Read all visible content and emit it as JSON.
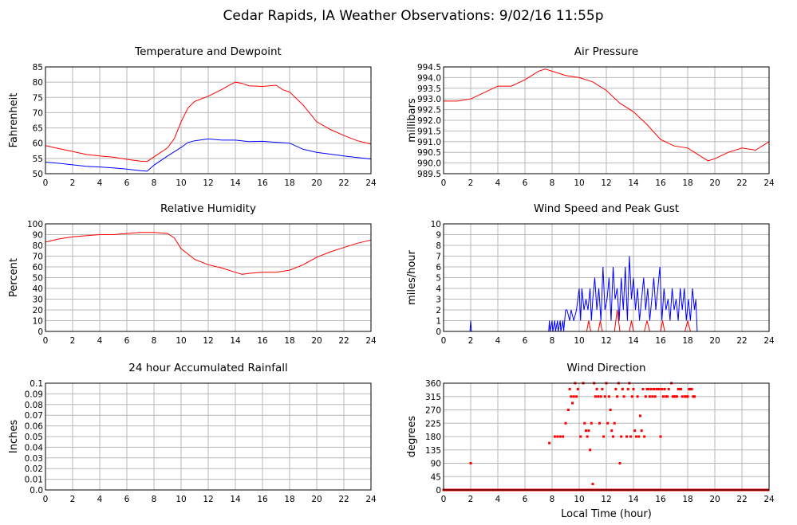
{
  "page": {
    "title": "Cedar Rapids, IA Weather Observations: 9/02/16 11:55p",
    "xaxis_label": "Local Time (hour)"
  },
  "colors": {
    "red": "#ff0000",
    "blue": "#0000ff"
  },
  "chart_data": [
    {
      "id": "temp",
      "type": "line",
      "title": "Temperature and Dewpoint",
      "ylabel": "Fahrenheit",
      "xlim": [
        0,
        24
      ],
      "ylim": [
        50,
        85
      ],
      "x_ticks": [
        0,
        2,
        4,
        6,
        8,
        10,
        12,
        14,
        16,
        18,
        20,
        22,
        24
      ],
      "y_ticks": [
        50,
        55,
        60,
        65,
        70,
        75,
        80,
        85
      ],
      "y_tick_labels": [
        "50",
        "55",
        "60",
        "65",
        "70",
        "75",
        "80",
        "85"
      ],
      "grid": true,
      "series": [
        {
          "color": "red",
          "x": [
            0,
            1,
            2,
            3,
            4,
            5,
            6,
            7,
            7.5,
            8,
            9,
            9.5,
            10,
            10.5,
            11,
            12,
            13,
            13.5,
            14,
            14.5,
            15,
            16,
            17,
            17.5,
            18,
            19,
            20,
            21,
            22,
            23,
            24
          ],
          "y": [
            59.2,
            58.2,
            57.3,
            56.3,
            55.8,
            55.4,
            54.7,
            54.1,
            54.0,
            55.5,
            58.5,
            61.5,
            67,
            71.5,
            73.7,
            75.4,
            77.6,
            78.9,
            80,
            79.6,
            78.8,
            78.6,
            79,
            77.5,
            76.8,
            72.5,
            67,
            64.5,
            62.5,
            60.8,
            59.7
          ]
        },
        {
          "color": "blue",
          "x": [
            0,
            1,
            2,
            3,
            4,
            5,
            6,
            7,
            7.5,
            8,
            9,
            10,
            10.5,
            11,
            12,
            13,
            14,
            15,
            16,
            17,
            18,
            19,
            20,
            21,
            22,
            23,
            24
          ],
          "y": [
            53.8,
            53.4,
            52.9,
            52.4,
            52.2,
            51.9,
            51.5,
            51.0,
            50.8,
            52.8,
            55.8,
            58.6,
            60.2,
            60.8,
            61.4,
            61.0,
            61.0,
            60.5,
            60.6,
            60.3,
            60.0,
            58.0,
            57.0,
            56.4,
            55.8,
            55.3,
            54.8
          ]
        }
      ]
    },
    {
      "id": "pressure",
      "type": "line",
      "title": "Air Pressure",
      "ylabel": "millibars",
      "xlim": [
        0,
        24
      ],
      "ylim": [
        989.5,
        994.5
      ],
      "x_ticks": [
        0,
        2,
        4,
        6,
        8,
        10,
        12,
        14,
        16,
        18,
        20,
        22,
        24
      ],
      "y_ticks": [
        989.5,
        990,
        990.5,
        991,
        991.5,
        992,
        992.5,
        993,
        993.5,
        994,
        994.5
      ],
      "y_tick_labels": [
        "989.5",
        "990.0",
        "990.5",
        "991.0",
        "991.5",
        "992.0",
        "992.5",
        "993.0",
        "993.5",
        "994.0",
        "994.5"
      ],
      "grid": true,
      "series": [
        {
          "color": "red",
          "x": [
            0,
            1,
            2,
            3,
            4,
            5,
            6,
            7,
            7.5,
            8,
            9,
            10,
            11,
            12,
            13,
            14,
            15,
            16,
            17,
            18,
            19,
            19.5,
            20,
            21,
            22,
            23,
            24
          ],
          "y": [
            992.9,
            992.9,
            993.0,
            993.3,
            993.6,
            993.6,
            993.9,
            994.3,
            994.4,
            994.3,
            994.1,
            994.0,
            993.8,
            993.4,
            992.8,
            992.4,
            991.8,
            991.1,
            990.8,
            990.7,
            990.3,
            990.1,
            990.2,
            990.5,
            990.7,
            990.6,
            991.0
          ]
        }
      ]
    },
    {
      "id": "humidity",
      "type": "line",
      "title": "Relative Humidity",
      "ylabel": "Percent",
      "xlim": [
        0,
        24
      ],
      "ylim": [
        0,
        100
      ],
      "x_ticks": [
        0,
        2,
        4,
        6,
        8,
        10,
        12,
        14,
        16,
        18,
        20,
        22,
        24
      ],
      "y_ticks": [
        0,
        10,
        20,
        30,
        40,
        50,
        60,
        70,
        80,
        90,
        100
      ],
      "y_tick_labels": [
        "0",
        "10",
        "20",
        "30",
        "40",
        "50",
        "60",
        "70",
        "80",
        "90",
        "100"
      ],
      "grid": true,
      "series": [
        {
          "color": "red",
          "x": [
            0,
            1,
            2,
            3,
            4,
            5,
            6,
            7,
            8,
            9,
            9.5,
            10,
            11,
            12,
            13,
            14,
            14.5,
            15,
            16,
            17,
            18,
            19,
            20,
            21,
            22,
            23,
            24
          ],
          "y": [
            83,
            86,
            88,
            89,
            90,
            90,
            91,
            92,
            92,
            91,
            87,
            77,
            67,
            62,
            59,
            55,
            53,
            54,
            55,
            55,
            57,
            62,
            69,
            74,
            78,
            82,
            85
          ]
        }
      ]
    },
    {
      "id": "wind",
      "type": "line",
      "title": "Wind Speed and Peak Gust",
      "ylabel": "miles/hour",
      "xlim": [
        0,
        24
      ],
      "ylim": [
        0,
        10
      ],
      "x_ticks": [
        0,
        2,
        4,
        6,
        8,
        10,
        12,
        14,
        16,
        18,
        20,
        22,
        24
      ],
      "y_ticks": [
        0,
        1,
        2,
        3,
        4,
        5,
        6,
        7,
        8,
        9,
        10
      ],
      "y_tick_labels": [
        "0",
        "1",
        "2",
        "3",
        "4",
        "5",
        "6",
        "7",
        "8",
        "9",
        "10"
      ],
      "grid": true,
      "series": [
        {
          "color": "blue",
          "x": [
            0,
            1.95,
            2,
            2.05,
            7.75,
            7.8,
            7.85,
            8.0,
            8.05,
            8.2,
            8.25,
            8.4,
            8.45,
            8.6,
            8.65,
            8.8,
            8.85,
            9,
            9.1,
            9.3,
            9.4,
            9.6,
            9.8,
            10,
            10.1,
            10.2,
            10.35,
            10.5,
            10.65,
            10.8,
            10.9,
            11,
            11.15,
            11.3,
            11.45,
            11.6,
            11.75,
            11.9,
            12.05,
            12.2,
            12.35,
            12.5,
            12.65,
            12.8,
            12.95,
            13.1,
            13.25,
            13.4,
            13.55,
            13.7,
            13.85,
            14,
            14.15,
            14.3,
            14.45,
            14.6,
            14.75,
            14.9,
            15.05,
            15.2,
            15.35,
            15.5,
            15.65,
            15.8,
            15.95,
            16.1,
            16.25,
            16.4,
            16.55,
            16.7,
            16.85,
            17,
            17.15,
            17.3,
            17.45,
            17.6,
            17.75,
            17.9,
            18.05,
            18.2,
            18.35,
            18.5,
            18.6,
            18.7,
            24
          ],
          "y": [
            0,
            0,
            1,
            0,
            0,
            1,
            0,
            1,
            0,
            1,
            0,
            1,
            0,
            1,
            0,
            1,
            0,
            2,
            2,
            1,
            2,
            1,
            2,
            4,
            1,
            4,
            2,
            3,
            2,
            4,
            1,
            3,
            5,
            2,
            4,
            1,
            6,
            2,
            3,
            5,
            1,
            6,
            3,
            4,
            1,
            5,
            2,
            6,
            1,
            7,
            3,
            5,
            2,
            4,
            1,
            3,
            5,
            2,
            4,
            1,
            3,
            5,
            2,
            4,
            6,
            1,
            4,
            2,
            3,
            1,
            4,
            2,
            3,
            1,
            4,
            2,
            4,
            1,
            3,
            1,
            4,
            2,
            3,
            0,
            0
          ]
        },
        {
          "color": "red",
          "x": [
            0,
            10.55,
            10.7,
            10.85,
            11.4,
            11.55,
            11.7,
            12.6,
            12.8,
            13.0,
            13.7,
            13.85,
            14.0,
            14.8,
            15.0,
            15.2,
            16.0,
            16.15,
            16.3,
            17.8,
            18.0,
            18.2,
            24
          ],
          "y": [
            0,
            0,
            1,
            0,
            0,
            1,
            0,
            0,
            2,
            0,
            0,
            1,
            0,
            0,
            1,
            0,
            0,
            1,
            0,
            0,
            1,
            0,
            0
          ]
        }
      ]
    },
    {
      "id": "rain",
      "type": "line",
      "title": "24 hour Accumulated Rainfall",
      "ylabel": "Inches",
      "xlim": [
        0,
        24
      ],
      "ylim": [
        0,
        0.1
      ],
      "x_ticks": [
        0,
        2,
        4,
        6,
        8,
        10,
        12,
        14,
        16,
        18,
        20,
        22,
        24
      ],
      "y_ticks": [
        0,
        0.01,
        0.02,
        0.03,
        0.04,
        0.05,
        0.06,
        0.07,
        0.08,
        0.09,
        0.1
      ],
      "y_tick_labels": [
        "0.0",
        "0.01",
        "0.02",
        "0.03",
        "0.04",
        "0.05",
        "0.06",
        "0.07",
        "0.08",
        "0.09",
        "0.1"
      ],
      "grid": true,
      "series": [
        {
          "color": "red",
          "x": [
            0,
            24
          ],
          "y": [
            0,
            0
          ]
        }
      ]
    },
    {
      "id": "direction",
      "type": "scatter",
      "title": "Wind Direction",
      "ylabel": "degrees",
      "xlim": [
        0,
        24
      ],
      "ylim": [
        0,
        360
      ],
      "x_ticks": [
        0,
        2,
        4,
        6,
        8,
        10,
        12,
        14,
        16,
        18,
        20,
        22,
        24
      ],
      "y_ticks": [
        0,
        45,
        90,
        135,
        180,
        225,
        270,
        315,
        360
      ],
      "y_tick_labels": [
        "0",
        "45",
        "90",
        "135",
        "180",
        "225",
        "270",
        "315",
        "360"
      ],
      "grid": true,
      "series": [
        {
          "color": "red",
          "x": [
            2,
            7.8,
            8.2,
            8.4,
            8.6,
            8.8,
            9.0,
            9.2,
            9.3,
            9.4,
            9.5,
            9.6,
            9.7,
            9.8,
            9.9,
            10.1,
            10.3,
            10.4,
            10.5,
            10.6,
            10.7,
            10.8,
            10.9,
            11.0,
            11.1,
            11.2,
            11.3,
            11.4,
            11.5,
            11.6,
            11.7,
            11.8,
            11.9,
            12.0,
            12.1,
            12.2,
            12.3,
            12.4,
            12.5,
            12.6,
            12.7,
            12.8,
            12.9,
            13.0,
            13.1,
            13.2,
            13.3,
            13.5,
            13.6,
            13.7,
            13.8,
            13.9,
            14.0,
            14.1,
            14.2,
            14.3,
            14.4,
            14.5,
            14.6,
            14.7,
            14.8,
            14.9,
            15.0,
            15.1,
            15.2,
            15.3,
            15.4,
            15.5,
            15.6,
            15.7,
            15.8,
            15.9,
            16.0,
            16.1,
            16.2,
            16.3,
            16.4,
            16.5,
            16.6,
            16.8,
            16.9,
            17.0,
            17.1,
            17.2,
            17.3,
            17.4,
            17.5,
            17.6,
            17.8,
            17.9,
            18.0,
            18.1,
            18.2,
            18.3,
            18.4,
            18.5
          ],
          "y": [
            90,
            158,
            180,
            180,
            180,
            180,
            225,
            270,
            340,
            315,
            293,
            315,
            360,
            315,
            340,
            180,
            360,
            225,
            200,
            180,
            200,
            135,
            225,
            20,
            360,
            315,
            340,
            315,
            225,
            315,
            340,
            180,
            315,
            360,
            225,
            315,
            270,
            200,
            180,
            225,
            340,
            315,
            360,
            90,
            180,
            340,
            315,
            180,
            340,
            360,
            180,
            315,
            340,
            200,
            180,
            315,
            180,
            250,
            200,
            340,
            180,
            315,
            340,
            340,
            315,
            340,
            315,
            340,
            315,
            340,
            340,
            340,
            180,
            340,
            315,
            340,
            315,
            315,
            340,
            360,
            315,
            315,
            315,
            315,
            340,
            340,
            340,
            315,
            315,
            315,
            315,
            340,
            340,
            340,
            315,
            315
          ]
        }
      ]
    }
  ]
}
